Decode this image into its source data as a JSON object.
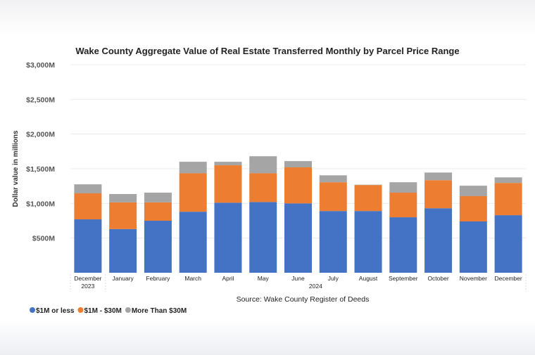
{
  "chart_data": {
    "type": "bar",
    "stacked": true,
    "title": "Wake County Aggregate Value of Real Estate Transferred Monthly by Parcel Price Range",
    "ylabel": "Dollar value in millions",
    "xlabel": "Source: Wake County Register of Deeds",
    "ylim": [
      0,
      3000
    ],
    "yticks": [
      500,
      1000,
      1500,
      2000,
      2500,
      3000
    ],
    "ytick_labels": [
      "$500M",
      "$1,000M",
      "$1,500M",
      "$2,000M",
      "$2,500M",
      "$3,000M"
    ],
    "grid": true,
    "legend_position": "bottom-left",
    "categories": [
      "December",
      "January",
      "February",
      "March",
      "April",
      "May",
      "June",
      "July",
      "August",
      "September",
      "October",
      "November",
      "December"
    ],
    "year_groups": [
      {
        "label": "2023",
        "from": 0,
        "to": 0
      },
      {
        "label": "2024",
        "from": 1,
        "to": 12
      }
    ],
    "series": [
      {
        "name": "$1M or less",
        "color": "#4472c4",
        "values": [
          770,
          630,
          750,
          880,
          1010,
          1020,
          1000,
          890,
          890,
          800,
          930,
          740,
          830
        ]
      },
      {
        "name": "$1M - $30M",
        "color": "#ed7d31",
        "values": [
          375,
          385,
          265,
          555,
          540,
          415,
          520,
          415,
          375,
          355,
          405,
          365,
          465
        ]
      },
      {
        "name": "More Than $30M",
        "color": "#a5a5a5",
        "values": [
          130,
          120,
          140,
          165,
          50,
          245,
          90,
          100,
          5,
          150,
          110,
          150,
          80
        ]
      }
    ]
  }
}
